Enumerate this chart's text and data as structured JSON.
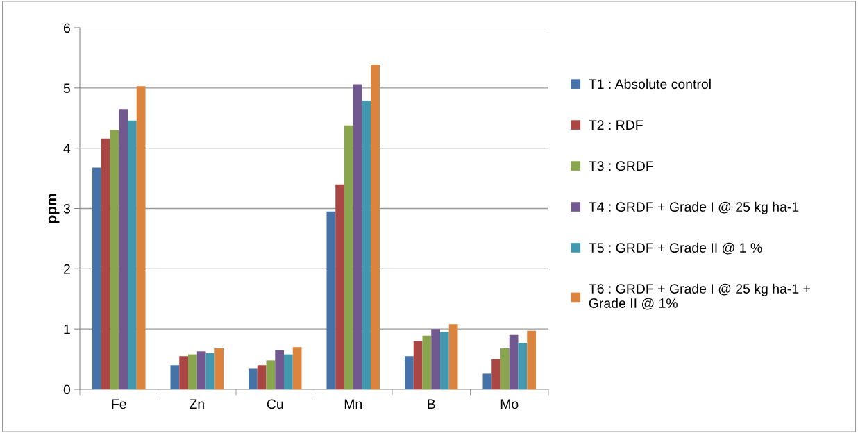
{
  "chart_data": {
    "type": "bar",
    "ylabel": "ppm",
    "categories": [
      "Fe",
      "Zn",
      "Cu",
      "Mn",
      "B",
      "Mo"
    ],
    "series": [
      {
        "name": "T1 : Absolute control",
        "color": "#4572a7",
        "values": [
          3.68,
          0.4,
          0.34,
          2.95,
          0.55,
          0.26
        ]
      },
      {
        "name": "T2 : RDF",
        "color": "#aa4643",
        "values": [
          4.16,
          0.55,
          0.4,
          3.4,
          0.8,
          0.5
        ]
      },
      {
        "name": "T3 : GRDF",
        "color": "#89a54e",
        "values": [
          4.3,
          0.58,
          0.48,
          4.38,
          0.89,
          0.68
        ]
      },
      {
        "name": "T4 : GRDF + Grade I @ 25 kg ha-1",
        "color": "#71588f",
        "values": [
          4.65,
          0.63,
          0.65,
          5.06,
          1.0,
          0.9
        ]
      },
      {
        "name": "T5 : GRDF + Grade II @ 1 %",
        "color": "#4198af",
        "values": [
          4.46,
          0.6,
          0.58,
          4.79,
          0.95,
          0.77
        ]
      },
      {
        "name": "T6 : GRDF + Grade I @ 25 kg ha-1 +\nGrade II @ 1%",
        "color": "#db843d",
        "values": [
          5.03,
          0.68,
          0.7,
          5.39,
          1.08,
          0.97
        ]
      }
    ],
    "ylim": [
      0,
      6
    ],
    "yticks": [
      0,
      1,
      2,
      3,
      4,
      5,
      6
    ],
    "grid": "y",
    "legend": "right"
  }
}
